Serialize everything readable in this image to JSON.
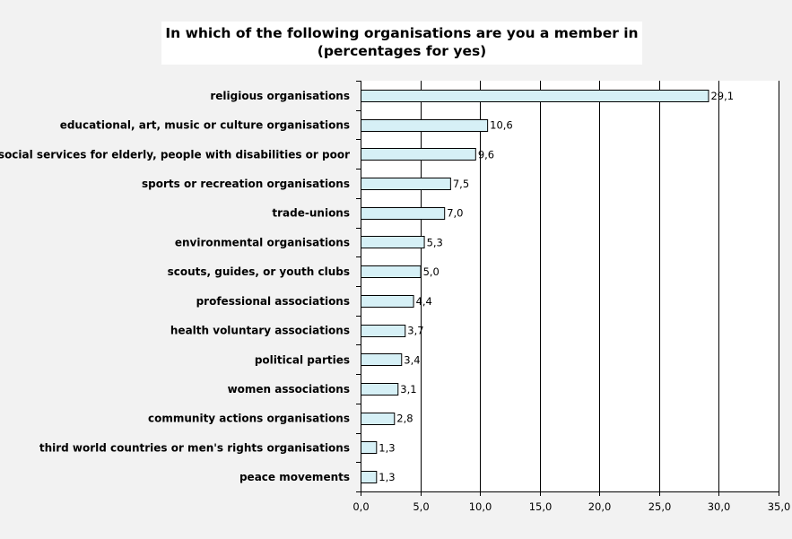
{
  "chart_data": {
    "type": "bar",
    "orientation": "horizontal",
    "title": "In which of the following organisations are you a member in",
    "subtitle": "(percentages for yes)",
    "categories": [
      "religious organisations",
      "educational, art, music or culture organisations",
      "social services for elderly, people with disabilities or poor",
      "sports or recreation organisations",
      "trade-unions",
      "environmental organisations",
      "scouts, guides, or youth clubs",
      "professional associations",
      "health voluntary associations",
      "political parties",
      "women associations",
      "community actions organisations",
      "third world countries or men's rights organisations",
      "peace movements"
    ],
    "values": [
      29.1,
      10.6,
      9.6,
      7.5,
      7.0,
      5.3,
      5.0,
      4.4,
      3.7,
      3.4,
      3.1,
      2.8,
      1.3,
      1.3
    ],
    "value_labels": [
      "29,1",
      "10,6",
      "9,6",
      "7,5",
      "7,0",
      "5,3",
      "5,0",
      "4,4",
      "3,7",
      "3,4",
      "3,1",
      "2,8",
      "1,3",
      "1,3"
    ],
    "xlim": [
      0,
      35
    ],
    "xticks": [
      0,
      5,
      10,
      15,
      20,
      25,
      30,
      35
    ],
    "xtick_labels": [
      "0,0",
      "5,0",
      "10,0",
      "15,0",
      "20,0",
      "25,0",
      "30,0",
      "35,0"
    ],
    "xlabel": "",
    "ylabel": "",
    "grid": "vertical",
    "legend": "none",
    "colors": {
      "bar_fill": "#d6f0f6",
      "bar_stroke": "#000000",
      "plot_background": "#ffffff",
      "page_background": "#f2f2f2",
      "gridline": "#000000"
    }
  }
}
